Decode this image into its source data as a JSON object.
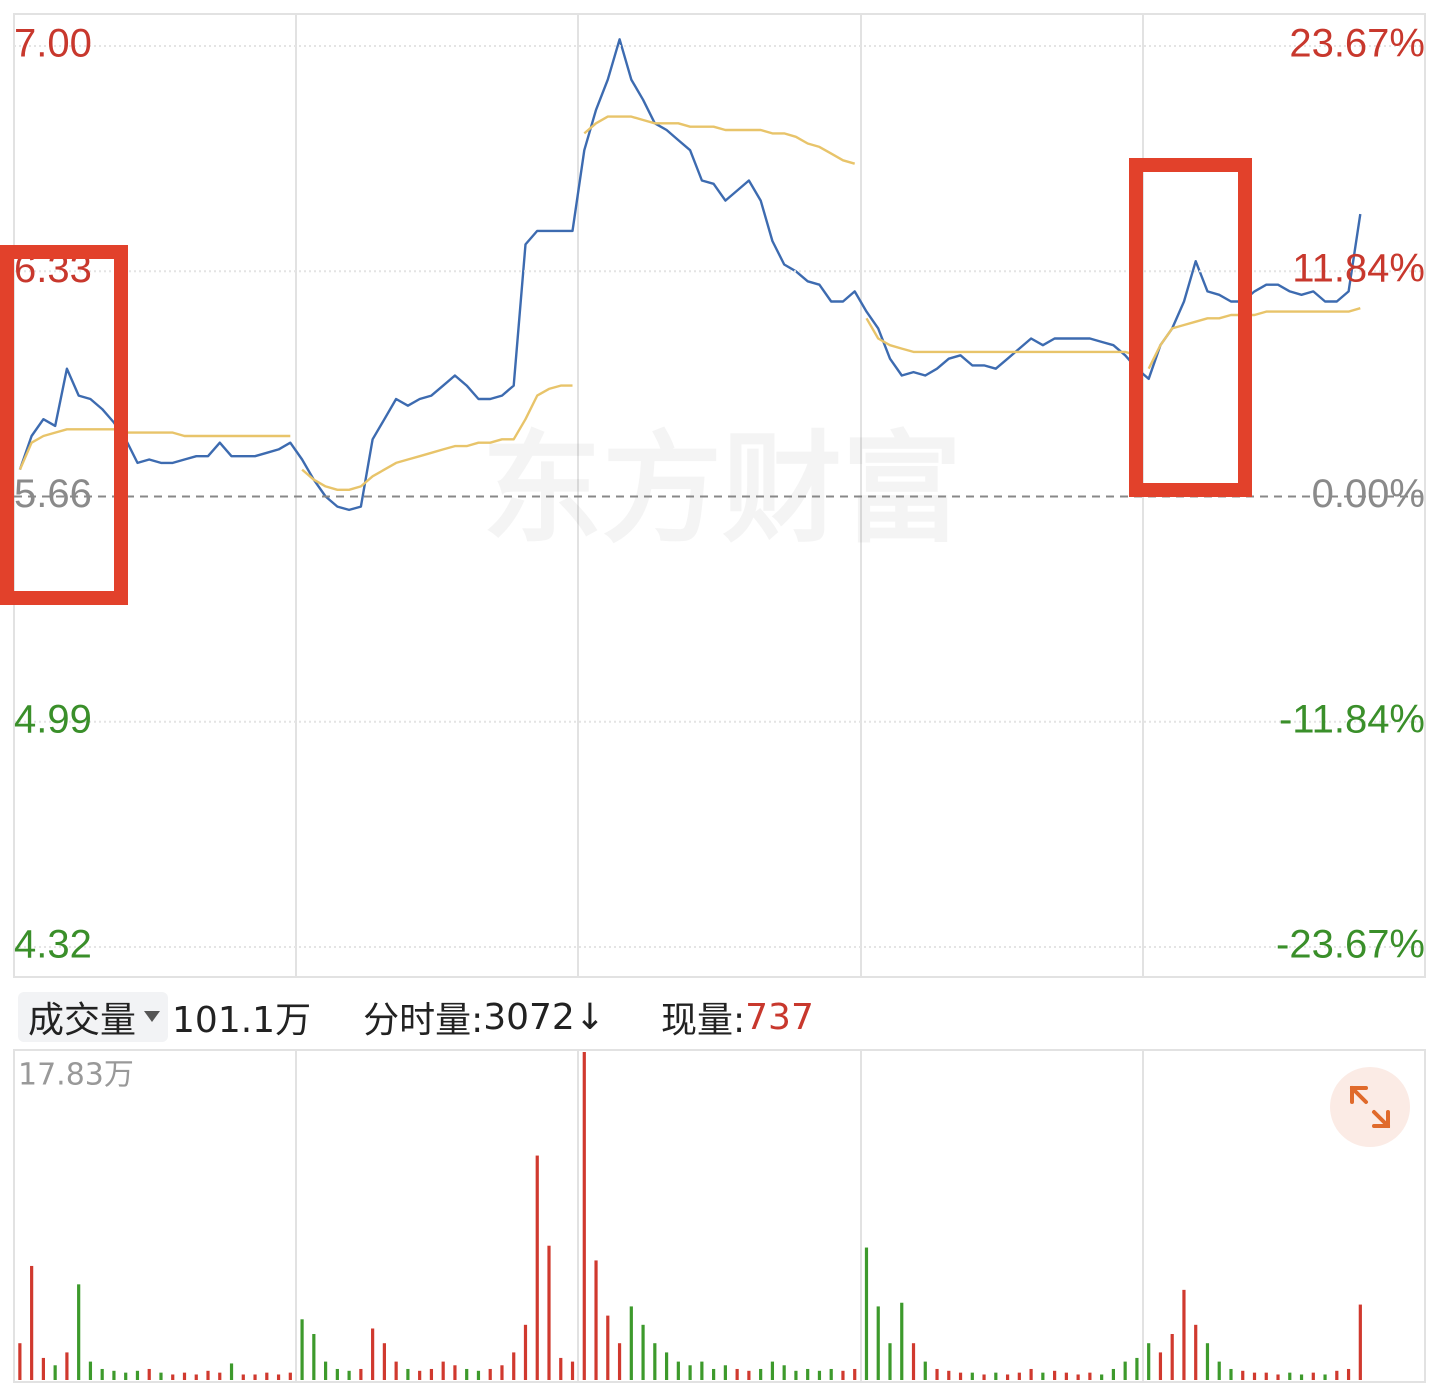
{
  "chart_data": [
    {
      "type": "line",
      "ylim": [
        4.32,
        7.0
      ],
      "yticks": [
        {
          "value": 7.0,
          "label": "7.00"
        },
        {
          "value": 6.33,
          "label": "6.33"
        },
        {
          "value": 5.66,
          "label": "5.66"
        },
        {
          "value": 4.99,
          "label": "4.99"
        },
        {
          "value": 4.32,
          "label": "4.32"
        }
      ],
      "y2lim": [
        -23.67,
        23.67
      ],
      "y2ticks": [
        {
          "value": 23.67,
          "label": "23.67%"
        },
        {
          "value": 11.84,
          "label": "11.84%"
        },
        {
          "value": 0,
          "label": "0.00%"
        },
        {
          "value": -11.84,
          "label": "-11.84%"
        },
        {
          "value": -23.67,
          "label": "-23.67%"
        }
      ],
      "grid": true,
      "series": [
        {
          "color": "#3d6bb0",
          "values": [
            5.74,
            5.84,
            5.89,
            5.87,
            6.04,
            5.96,
            5.95,
            5.92,
            5.88,
            5.83,
            5.76,
            5.77,
            5.76,
            5.76,
            5.77,
            5.78,
            5.78,
            5.82,
            5.78,
            5.78,
            5.78,
            5.79,
            5.8,
            5.82,
            5.77,
            5.71,
            5.66,
            5.63,
            5.62,
            5.63,
            5.83,
            5.89,
            5.95,
            5.93,
            5.95,
            5.96,
            5.99,
            6.02,
            5.99,
            5.95,
            5.95,
            5.96,
            5.99,
            6.41,
            6.45,
            6.45,
            6.45,
            6.45,
            6.69,
            6.81,
            6.9,
            7.02,
            6.9,
            6.84,
            6.77,
            6.75,
            6.72,
            6.69,
            6.6,
            6.59,
            6.54,
            6.57,
            6.6,
            6.54,
            6.42,
            6.35,
            6.33,
            6.3,
            6.29,
            6.24,
            6.24,
            6.27,
            6.21,
            6.16,
            6.07,
            6.02,
            6.03,
            6.02,
            6.04,
            6.07,
            6.08,
            6.05,
            6.05,
            6.04,
            6.07,
            6.1,
            6.13,
            6.11,
            6.13,
            6.13,
            6.13,
            6.13,
            6.12,
            6.11,
            6.08,
            6.04,
            6.01,
            6.11,
            6.16,
            6.24,
            6.36,
            6.27,
            6.26,
            6.24,
            6.24,
            6.27,
            6.29,
            6.29,
            6.27,
            6.26,
            6.27,
            6.24,
            6.24,
            6.27,
            6.5,
            null,
            null,
            null,
            null,
            null
          ]
        },
        {
          "color": "#e8c46a",
          "values": [
            5.74,
            5.82,
            5.84,
            5.85,
            5.86,
            5.86,
            5.86,
            5.86,
            5.86,
            5.85,
            5.85,
            5.85,
            5.85,
            5.85,
            5.84,
            5.84,
            5.84,
            5.84,
            5.84,
            5.84,
            5.84,
            5.84,
            5.84,
            5.84,
            5.74,
            5.71,
            5.69,
            5.68,
            5.68,
            5.69,
            5.72,
            5.74,
            5.76,
            5.77,
            5.78,
            5.79,
            5.8,
            5.81,
            5.81,
            5.82,
            5.82,
            5.83,
            5.83,
            5.89,
            5.96,
            5.98,
            5.99,
            5.99,
            6.74,
            6.77,
            6.79,
            6.79,
            6.79,
            6.78,
            6.77,
            6.77,
            6.77,
            6.76,
            6.76,
            6.76,
            6.75,
            6.75,
            6.75,
            6.75,
            6.74,
            6.74,
            6.73,
            6.71,
            6.7,
            6.68,
            6.66,
            6.65,
            6.19,
            6.13,
            6.11,
            6.1,
            6.09,
            6.09,
            6.09,
            6.09,
            6.09,
            6.09,
            6.09,
            6.09,
            6.09,
            6.09,
            6.09,
            6.09,
            6.09,
            6.09,
            6.09,
            6.09,
            6.09,
            6.09,
            6.09,
            6.08,
            6.04,
            6.11,
            6.16,
            6.17,
            6.18,
            6.19,
            6.19,
            6.2,
            6.2,
            6.2,
            6.21,
            6.21,
            6.21,
            6.21,
            6.21,
            6.21,
            6.21,
            6.21,
            6.22,
            null,
            null,
            null,
            null,
            null
          ]
        }
      ]
    },
    {
      "type": "bar",
      "ylim": [
        0,
        17.83
      ],
      "yticks": [
        {
          "value": 17.83,
          "label": "17.83万"
        }
      ],
      "up_color": "#d0392e",
      "down_color": "#3d9a2c",
      "values": [
        2.0,
        6.2,
        1.2,
        0.8,
        1.5,
        5.2,
        1.0,
        0.6,
        0.5,
        0.4,
        0.5,
        0.6,
        0.4,
        0.3,
        0.4,
        0.3,
        0.5,
        0.4,
        0.9,
        0.3,
        0.3,
        0.4,
        0.3,
        0.4,
        3.3,
        2.5,
        1.0,
        0.6,
        0.5,
        0.6,
        2.8,
        2.0,
        1.0,
        0.6,
        0.5,
        0.6,
        1.0,
        0.8,
        0.6,
        0.5,
        0.6,
        0.8,
        1.5,
        3.0,
        12.2,
        7.3,
        1.2,
        1.0,
        17.83,
        6.5,
        3.5,
        2.0,
        4.0,
        3.0,
        2.0,
        1.5,
        1.0,
        0.8,
        1.0,
        0.6,
        0.8,
        0.6,
        0.5,
        0.6,
        1.0,
        0.8,
        0.5,
        0.6,
        0.5,
        0.6,
        0.5,
        0.6,
        7.2,
        4.0,
        2.0,
        4.2,
        2.0,
        1.0,
        0.6,
        0.5,
        0.4,
        0.4,
        0.3,
        0.4,
        0.3,
        0.4,
        0.6,
        0.4,
        0.5,
        0.4,
        0.3,
        0.4,
        0.3,
        0.6,
        1.0,
        1.2,
        2.0,
        1.5,
        2.5,
        4.9,
        3.0,
        2.0,
        1.0,
        0.6,
        0.5,
        0.4,
        0.4,
        0.3,
        0.4,
        0.3,
        0.4,
        0.3,
        0.5,
        0.6,
        4.1,
        null,
        null,
        null,
        null,
        null
      ]
    }
  ],
  "watermark": "东方财富",
  "toolbar": {
    "volume_label": "成交量",
    "total_volume": "101.1万",
    "period_volume_label": "分时量:",
    "period_volume": "3072",
    "period_volume_trend": "↓",
    "current_volume_label": "现量:",
    "current_volume": "737"
  }
}
